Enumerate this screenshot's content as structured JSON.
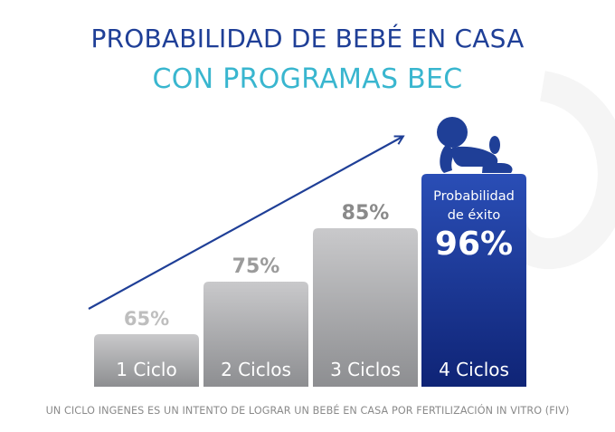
{
  "header": {
    "title_line1": "PROBABILIDAD DE BEBÉ EN CASA",
    "title_line2": "CON PROGRAMAS BEC"
  },
  "colors": {
    "title_primary": "#1f3f97",
    "title_secondary": "#39b6cf",
    "bar_grey_top": "#c9c9cb",
    "bar_grey_bottom": "#8d8e91",
    "bar_blue_top": "#2a4eb6",
    "bar_blue_bottom": "#0f2476",
    "value_label_grey": "#8a8a8a",
    "arrow": "#1f3f97"
  },
  "chart_data": {
    "type": "bar",
    "title": "PROBABILIDAD DE BEBÉ EN CASA CON PROGRAMAS BEC",
    "categories": [
      "1 Ciclo",
      "2 Ciclos",
      "3 Ciclos",
      "4 Ciclos"
    ],
    "values": [
      65,
      75,
      85,
      96
    ],
    "value_labels": [
      "65%",
      "75%",
      "85%",
      "96%"
    ],
    "unit": "%",
    "highlight": {
      "index": 3,
      "caption_line1": "Probabilidad",
      "caption_line2": "de éxito",
      "value_label": "96%",
      "icon": "baby-crawling-icon"
    },
    "trend_arrow": true,
    "xlabel": "",
    "ylabel": "",
    "ylim": [
      0,
      100
    ],
    "grid": false,
    "legend": "none"
  },
  "footnote": "UN CICLO INGENES ES UN INTENTO DE LOGRAR UN BEBÉ EN CASA POR FERTILIZACIÓN IN VITRO (FIV)"
}
